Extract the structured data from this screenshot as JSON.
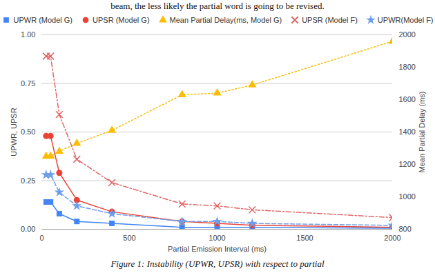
{
  "chart_data": {
    "type": "line",
    "annotations": [
      "beam, the less likely the partial word is going to be revised."
    ],
    "caption": "Figure 1: Instability (UPWR, UPSR) with respect to partial",
    "x_label": "Partial Emission Interval (ms)",
    "y_label": "UPWR, UPSR",
    "y2_label": "Mean Partial Delay (ms)",
    "x": [
      25,
      50,
      100,
      200,
      400,
      800,
      1000,
      1200,
      2000
    ],
    "xlim": [
      0,
      2000
    ],
    "xticks": [
      0,
      500,
      1000,
      1500,
      2000
    ],
    "ylim": [
      0,
      1
    ],
    "yticks": [
      {
        "value": 0,
        "label": "0.00"
      },
      {
        "value": 0.25,
        "label": "0.25"
      },
      {
        "value": 0.5,
        "label": "0.50"
      },
      {
        "value": 0.75,
        "label": "0.75"
      },
      {
        "value": 1,
        "label": "1.00"
      }
    ],
    "y2lim": [
      800,
      2000
    ],
    "y2ticks": [
      800,
      1000,
      1200,
      1400,
      1600,
      1800,
      2000
    ],
    "grid": true,
    "legend": "top",
    "series": [
      {
        "name": "UPWR (Model G)",
        "color": "#4285f4",
        "marker": "square",
        "line_style": "solid",
        "values": [
          0.14,
          0.14,
          0.08,
          0.04,
          0.03,
          0.01,
          0.01,
          0.01,
          0.005
        ]
      },
      {
        "name": "UPSR (Model G)",
        "color": "#ea4335",
        "marker": "circle",
        "line_style": "solid",
        "values": [
          0.48,
          0.48,
          0.29,
          0.15,
          0.09,
          0.04,
          0.03,
          0.02,
          0.01
        ]
      },
      {
        "name": "Mean Partial Delay(ms, Model G)",
        "color": "#fbbc04",
        "marker": "triangle",
        "line_style": "dotted",
        "axis": "y2",
        "values": [
          1250,
          1250,
          1280,
          1330,
          1410,
          1630,
          1640,
          1690,
          1960
        ]
      },
      {
        "name": "UPSR (Model F)",
        "color": "#e06666",
        "marker": "times",
        "line_style": "dashdot",
        "values": [
          0.89,
          0.89,
          0.59,
          0.36,
          0.24,
          0.13,
          0.12,
          0.1,
          0.06
        ]
      },
      {
        "name": "UPWR(Model F)",
        "color": "#6d9eeb",
        "marker": "star",
        "line_style": "dashed",
        "values": [
          0.28,
          0.28,
          0.19,
          0.12,
          0.08,
          0.04,
          0.04,
          0.03,
          0.02
        ]
      }
    ]
  }
}
